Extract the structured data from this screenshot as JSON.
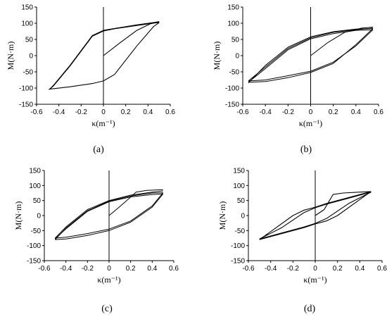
{
  "figure": {
    "panel_labels": [
      "(a)",
      "(b)",
      "(c)",
      "(d)"
    ]
  },
  "chart_data": [
    {
      "type": "line",
      "label": "(a)",
      "xlabel": "κ(m⁻¹)",
      "ylabel": "M(N·m)",
      "xlim": [
        -0.6,
        0.6
      ],
      "ylim": [
        -150,
        150
      ],
      "xticks": [
        -0.6,
        -0.4,
        -0.2,
        0,
        0.2,
        0.4,
        0.6
      ],
      "yticks": [
        -150,
        -100,
        -50,
        0,
        50,
        100,
        150
      ],
      "grid": false,
      "series": [
        {
          "x": [
            0,
            0.15,
            0.3,
            0.42,
            0.5
          ],
          "y": [
            0,
            40,
            78,
            98,
            105
          ]
        },
        {
          "x": [
            0.5,
            0.47,
            0.3,
            0.1,
            0.0,
            -0.1,
            -0.3,
            -0.45,
            -0.48
          ],
          "y": [
            105,
            103,
            95,
            84,
            78,
            62,
            -30,
            -92,
            -103
          ]
        },
        {
          "x": [
            -0.48,
            -0.45,
            -0.3,
            -0.1,
            0.0,
            0.1,
            0.3,
            0.45,
            0.5
          ],
          "y": [
            -103,
            -102,
            -96,
            -86,
            -78,
            -58,
            30,
            90,
            102
          ]
        },
        {
          "x": [
            0.5,
            0.47,
            0.3,
            0.1,
            0.0,
            -0.1,
            -0.3,
            -0.45,
            -0.49
          ],
          "y": [
            102,
            101,
            93,
            83,
            76,
            60,
            -32,
            -94,
            -105
          ]
        }
      ]
    },
    {
      "type": "line",
      "label": "(b)",
      "xlabel": "κ(m⁻¹)",
      "ylabel": "M(N·m)",
      "xlim": [
        -0.6,
        0.6
      ],
      "ylim": [
        -150,
        150
      ],
      "xticks": [
        -0.6,
        -0.4,
        -0.2,
        0,
        0.2,
        0.4,
        0.6
      ],
      "yticks": [
        -150,
        -100,
        -50,
        0,
        50,
        100,
        150
      ],
      "grid": false,
      "series": [
        {
          "x": [
            0,
            0.15,
            0.3,
            0.45,
            0.55
          ],
          "y": [
            0,
            40,
            72,
            85,
            88
          ]
        },
        {
          "x": [
            0.55,
            0.4,
            0.2,
            0.0,
            -0.2,
            -0.4,
            -0.55
          ],
          "y": [
            85,
            80,
            72,
            55,
            22,
            -35,
            -78
          ]
        },
        {
          "x": [
            -0.55,
            -0.4,
            -0.2,
            0.0,
            0.2,
            0.4,
            0.55
          ],
          "y": [
            -78,
            -75,
            -62,
            -48,
            -20,
            30,
            80
          ]
        },
        {
          "x": [
            0.55,
            0.4,
            0.2,
            0.0,
            -0.2,
            -0.4,
            -0.55
          ],
          "y": [
            80,
            78,
            68,
            52,
            18,
            -40,
            -82
          ]
        },
        {
          "x": [
            -0.55,
            -0.4,
            -0.2,
            0.0,
            0.2,
            0.4,
            0.55
          ],
          "y": [
            -82,
            -80,
            -68,
            -52,
            -24,
            34,
            84
          ]
        },
        {
          "x": [
            0.55,
            0.4,
            0.2,
            0.0,
            -0.2,
            -0.4,
            -0.55
          ],
          "y": [
            84,
            82,
            74,
            58,
            26,
            -30,
            -84
          ]
        }
      ]
    },
    {
      "type": "line",
      "label": "(c)",
      "xlabel": "κ(m⁻¹)",
      "ylabel": "M(N·m)",
      "xlim": [
        -0.6,
        0.6
      ],
      "ylim": [
        -150,
        150
      ],
      "xticks": [
        -0.6,
        -0.4,
        -0.2,
        0,
        0.2,
        0.4,
        0.6
      ],
      "yticks": [
        -150,
        -100,
        -50,
        0,
        50,
        100,
        150
      ],
      "grid": false,
      "series": [
        {
          "x": [
            0,
            0.1,
            0.18,
            0.25,
            0.35,
            0.5
          ],
          "y": [
            0,
            30,
            55,
            78,
            84,
            86
          ]
        },
        {
          "x": [
            0.5,
            0.4,
            0.2,
            0.0,
            -0.2,
            -0.4,
            -0.5
          ],
          "y": [
            82,
            78,
            68,
            50,
            20,
            -38,
            -75
          ]
        },
        {
          "x": [
            -0.5,
            -0.4,
            -0.2,
            0.0,
            0.2,
            0.4,
            0.5
          ],
          "y": [
            -75,
            -72,
            -60,
            -45,
            -18,
            32,
            76
          ]
        },
        {
          "x": [
            0.5,
            0.4,
            0.2,
            0.0,
            -0.2,
            -0.4,
            -0.5
          ],
          "y": [
            76,
            75,
            65,
            48,
            16,
            -42,
            -80
          ]
        },
        {
          "x": [
            -0.5,
            -0.4,
            -0.2,
            0.0,
            0.2,
            0.4,
            0.5
          ],
          "y": [
            -80,
            -78,
            -66,
            -50,
            -22,
            28,
            72
          ]
        },
        {
          "x": [
            0.5,
            0.4,
            0.2,
            0.0,
            -0.2,
            -0.4,
            -0.5
          ],
          "y": [
            72,
            70,
            62,
            46,
            14,
            -44,
            -78
          ]
        }
      ]
    },
    {
      "type": "line",
      "label": "(d)",
      "xlabel": "κ(m⁻¹)",
      "ylabel": "M(N·m)",
      "xlim": [
        -0.6,
        0.6
      ],
      "ylim": [
        -150,
        150
      ],
      "xticks": [
        -0.6,
        -0.4,
        -0.2,
        0,
        0.2,
        0.4,
        0.6
      ],
      "yticks": [
        -150,
        -100,
        -50,
        0,
        50,
        100,
        150
      ],
      "grid": false,
      "series": [
        {
          "x": [
            0,
            0.08,
            0.12,
            0.16,
            0.25,
            0.4,
            0.5
          ],
          "y": [
            0,
            20,
            45,
            70,
            75,
            78,
            80
          ]
        },
        {
          "x": [
            0.5,
            0.3,
            0.1,
            0.0,
            -0.1,
            -0.2,
            -0.35,
            -0.5
          ],
          "y": [
            80,
            60,
            40,
            28,
            18,
            0,
            -40,
            -80
          ]
        },
        {
          "x": [
            -0.5,
            -0.3,
            -0.1,
            0.0,
            0.1,
            0.2,
            0.35,
            0.5
          ],
          "y": [
            -80,
            -60,
            -40,
            -28,
            -18,
            0,
            40,
            80
          ]
        },
        {
          "x": [
            0.5,
            0.3,
            0.1,
            0.0,
            -0.1,
            -0.3,
            -0.5
          ],
          "y": [
            78,
            58,
            38,
            26,
            10,
            -40,
            -78
          ]
        },
        {
          "x": [
            -0.5,
            -0.3,
            -0.1,
            0.0,
            0.1,
            0.3,
            0.5
          ],
          "y": [
            -78,
            -58,
            -38,
            -26,
            -10,
            40,
            78
          ]
        }
      ]
    }
  ]
}
